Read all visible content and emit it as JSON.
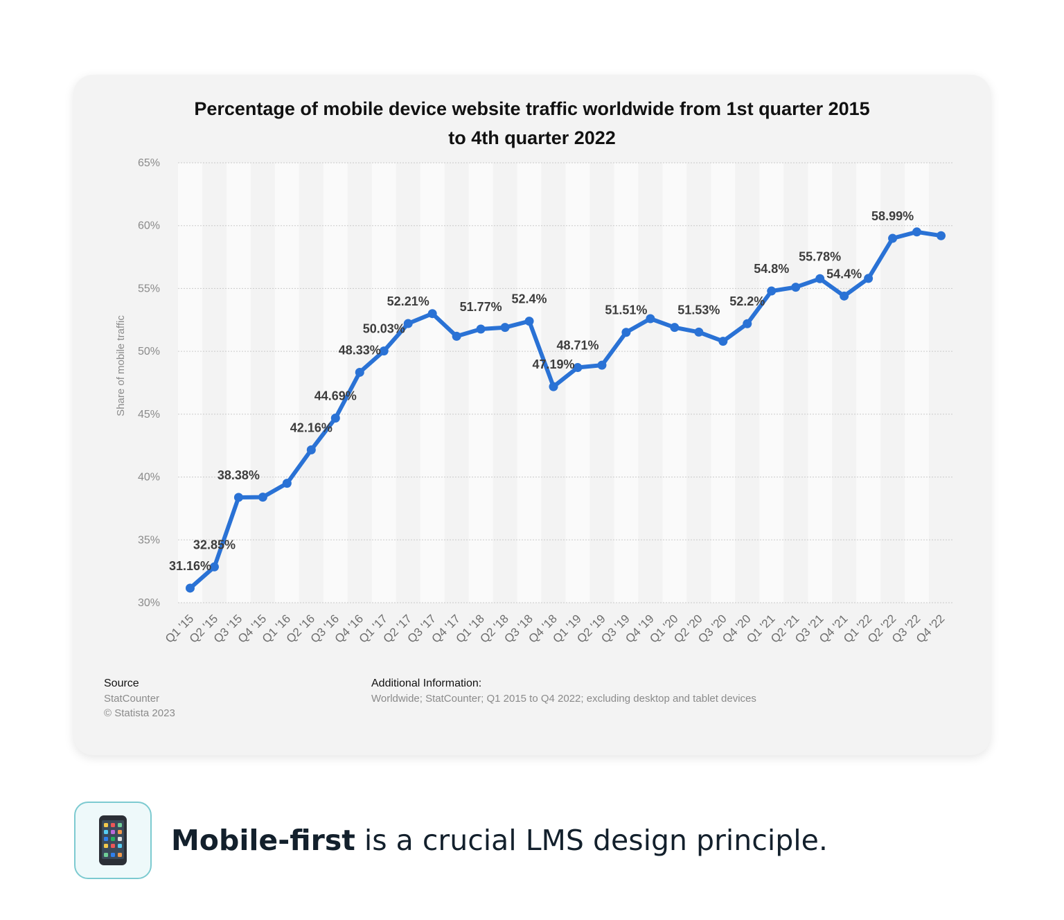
{
  "chart_data": {
    "type": "line",
    "title_line1": "Percentage of mobile device website traffic worldwide from 1st quarter 2015",
    "title_line2": "to 4th quarter 2022",
    "xlabel": "",
    "ylabel": "Share of mobile traffic",
    "ylim": [
      30,
      65
    ],
    "yticks": [
      30,
      35,
      40,
      45,
      50,
      55,
      60,
      65
    ],
    "ytick_labels": [
      "30%",
      "35%",
      "40%",
      "45%",
      "50%",
      "55%",
      "60%",
      "65%"
    ],
    "grid": true,
    "categories": [
      "Q1 '15",
      "Q2 '15",
      "Q3 '15",
      "Q4 '15",
      "Q1 '16",
      "Q2 '16",
      "Q3 '16",
      "Q4 '16",
      "Q1 '17",
      "Q2 '17",
      "Q3 '17",
      "Q4 '17",
      "Q1 '18",
      "Q2 '18",
      "Q3 '18",
      "Q4 '18",
      "Q1 '19",
      "Q2 '19",
      "Q3 '19",
      "Q4 '19",
      "Q1 '20",
      "Q2 '20",
      "Q3 '20",
      "Q4 '20",
      "Q1 '21",
      "Q2 '21",
      "Q3 '21",
      "Q4 '21",
      "Q1 '22",
      "Q2 '22",
      "Q3 '22",
      "Q4 '22"
    ],
    "series": [
      {
        "name": "Share of mobile traffic",
        "color": "#2a72d5",
        "values": [
          31.16,
          32.85,
          38.38,
          38.4,
          39.5,
          42.16,
          44.69,
          48.33,
          50.03,
          52.21,
          53.0,
          51.2,
          51.77,
          51.9,
          52.4,
          47.19,
          48.71,
          48.9,
          51.51,
          52.6,
          51.9,
          51.53,
          50.8,
          52.2,
          54.8,
          55.1,
          55.78,
          54.4,
          55.8,
          58.99,
          59.5,
          59.2
        ]
      }
    ],
    "data_labels": [
      {
        "index": 0,
        "text": "31.16%"
      },
      {
        "index": 1,
        "text": "32.85%"
      },
      {
        "index": 2,
        "text": "38.38%"
      },
      {
        "index": 5,
        "text": "42.16%"
      },
      {
        "index": 6,
        "text": "44.69%"
      },
      {
        "index": 7,
        "text": "48.33%"
      },
      {
        "index": 8,
        "text": "50.03%"
      },
      {
        "index": 9,
        "text": "52.21%"
      },
      {
        "index": 12,
        "text": "51.77%"
      },
      {
        "index": 14,
        "text": "52.4%"
      },
      {
        "index": 15,
        "text": "47.19%"
      },
      {
        "index": 16,
        "text": "48.71%"
      },
      {
        "index": 18,
        "text": "51.51%"
      },
      {
        "index": 21,
        "text": "51.53%"
      },
      {
        "index": 23,
        "text": "52.2%"
      },
      {
        "index": 24,
        "text": "54.8%"
      },
      {
        "index": 26,
        "text": "55.78%"
      },
      {
        "index": 27,
        "text": "54.4%"
      },
      {
        "index": 29,
        "text": "58.99%"
      }
    ]
  },
  "footer": {
    "source_heading": "Source",
    "source_name": "StatCounter",
    "copyright": "© Statista 2023",
    "additional_heading": "Additional Information:",
    "additional_text": "Worldwide; StatCounter; Q1 2015 to Q4 2022; excluding desktop and tablet devices"
  },
  "callout": {
    "icon": "mobile-phone-icon",
    "bold_text": "Mobile-first",
    "rest_text": " is a crucial LMS design principle."
  }
}
